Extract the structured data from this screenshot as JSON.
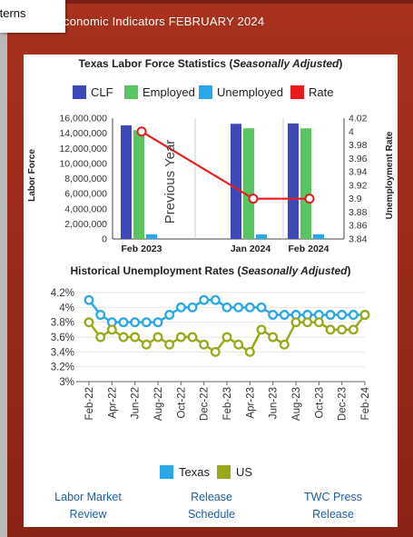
{
  "header": {
    "title": "conomic Indicators FEBRUARY 2024"
  },
  "tooltip": {
    "text": "tterns"
  },
  "chart_data": [
    {
      "type": "bar",
      "title": "Texas Labor Force Statistics",
      "title_suffix": "Seasonally Adjusted",
      "categories": [
        "Feb 2023",
        "Jan 2024",
        "Feb 2024"
      ],
      "series": [
        {
          "name": "CLF",
          "values": [
            15050000,
            15250000,
            15300000
          ],
          "color": "#3f48b8"
        },
        {
          "name": "Employed",
          "values": [
            14400000,
            14650000,
            14650000
          ],
          "color": "#58c462"
        },
        {
          "name": "Unemployed",
          "values": [
            620000,
            600000,
            620000
          ],
          "color": "#29a7e8"
        },
        {
          "name": "Rate",
          "values": [
            4.0,
            3.9,
            3.9
          ],
          "color": "#e81c1c",
          "axis": "right"
        }
      ],
      "ylabel": "Labor Force",
      "y2label": "Unemployment Rate",
      "ylim": [
        0,
        16000000
      ],
      "y2lim": [
        3.84,
        4.02
      ],
      "yticks": [
        "0",
        "2,000,000",
        "4,000,000",
        "6,000,000",
        "8,000,000",
        "10,000,000",
        "12,000,000",
        "14,000,000",
        "16,000,000"
      ],
      "y2ticks": [
        "3.84",
        "3.86",
        "3.88",
        "3.9",
        "3.92",
        "3.94",
        "3.96",
        "3.98",
        "4",
        "4.02"
      ],
      "annotation": "Previous Year",
      "legend": "top"
    },
    {
      "type": "line",
      "title": "Historical Unemployment Rates",
      "title_suffix": "Seasonally Adjusted",
      "x": [
        "Feb-22",
        "Mar-22",
        "Apr-22",
        "May-22",
        "Jun-22",
        "Jul-22",
        "Aug-22",
        "Sep-22",
        "Oct-22",
        "Nov-22",
        "Dec-22",
        "Jan-23",
        "Feb-23",
        "Mar-23",
        "Apr-23",
        "May-23",
        "Jun-23",
        "Jul-23",
        "Aug-23",
        "Sep-23",
        "Oct-23",
        "Nov-23",
        "Dec-23",
        "Jan-24",
        "Feb-24"
      ],
      "xticks": [
        "Feb-22",
        "Apr-22",
        "Jun-22",
        "Aug-22",
        "Oct-22",
        "Dec-22",
        "Feb-23",
        "Apr-23",
        "Jun-23",
        "Aug-23",
        "Oct-23",
        "Dec-23",
        "Feb-24"
      ],
      "series": [
        {
          "name": "Texas",
          "color": "#29a7e8",
          "values": [
            4.1,
            3.9,
            3.8,
            3.8,
            3.8,
            3.8,
            3.8,
            3.9,
            4.0,
            4.0,
            4.1,
            4.1,
            4.0,
            4.0,
            4.0,
            4.0,
            3.9,
            3.9,
            3.9,
            3.9,
            3.9,
            3.9,
            3.9,
            3.9,
            3.9
          ]
        },
        {
          "name": "US",
          "color": "#9aa81a",
          "values": [
            3.8,
            3.6,
            3.7,
            3.6,
            3.6,
            3.5,
            3.6,
            3.5,
            3.6,
            3.6,
            3.5,
            3.4,
            3.6,
            3.5,
            3.4,
            3.7,
            3.6,
            3.5,
            3.8,
            3.8,
            3.8,
            3.7,
            3.7,
            3.7,
            3.9
          ]
        }
      ],
      "ylim": [
        3.0,
        4.2
      ],
      "yticks": [
        "4.2%",
        "4%",
        "3.8%",
        "3.6%",
        "3.4%",
        "3.2%",
        "3%"
      ],
      "legend": "bottom"
    }
  ],
  "links": [
    {
      "line1": "Labor Market",
      "line2": "Review"
    },
    {
      "line1": "Release",
      "line2": "Schedule"
    },
    {
      "line1": "TWC Press",
      "line2": "Release"
    }
  ]
}
